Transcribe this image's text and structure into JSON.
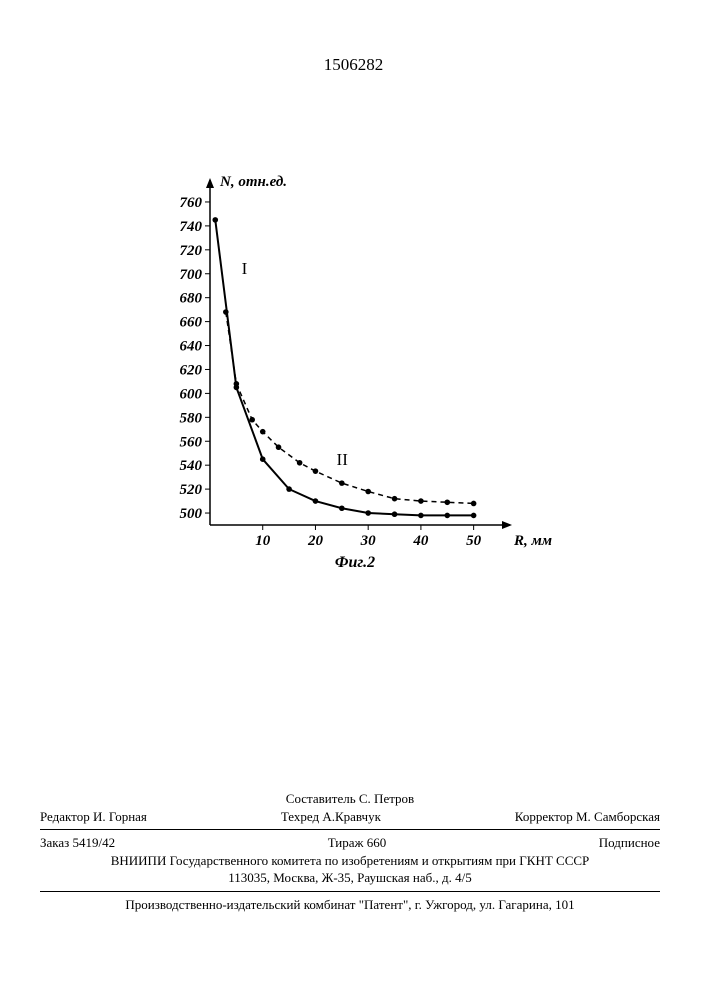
{
  "patent_number": "1506282",
  "chart": {
    "type": "line",
    "y_axis_label": "N, отн.ед.",
    "x_axis_label": "R, мм",
    "figure_caption": "Фиг.2",
    "y_ticks": [
      500,
      520,
      540,
      560,
      580,
      600,
      620,
      640,
      660,
      680,
      700,
      720,
      740,
      760
    ],
    "x_ticks": [
      10,
      20,
      30,
      40,
      50
    ],
    "ylim": [
      490,
      770
    ],
    "xlim": [
      0,
      55
    ],
    "series": [
      {
        "name": "I",
        "label": "I",
        "label_pos": {
          "x": 6,
          "y": 700
        },
        "style": "solid",
        "line_width": 2,
        "color": "#000000",
        "points": [
          {
            "x": 1,
            "y": 745
          },
          {
            "x": 5,
            "y": 605
          },
          {
            "x": 10,
            "y": 545
          },
          {
            "x": 15,
            "y": 520
          },
          {
            "x": 20,
            "y": 510
          },
          {
            "x": 25,
            "y": 504
          },
          {
            "x": 30,
            "y": 500
          },
          {
            "x": 35,
            "y": 499
          },
          {
            "x": 40,
            "y": 498
          },
          {
            "x": 45,
            "y": 498
          },
          {
            "x": 50,
            "y": 498
          }
        ]
      },
      {
        "name": "II",
        "label": "II",
        "label_pos": {
          "x": 24,
          "y": 540
        },
        "style": "dashed",
        "line_width": 1.5,
        "color": "#000000",
        "points": [
          {
            "x": 3,
            "y": 668
          },
          {
            "x": 5,
            "y": 608
          },
          {
            "x": 8,
            "y": 578
          },
          {
            "x": 10,
            "y": 568
          },
          {
            "x": 13,
            "y": 555
          },
          {
            "x": 17,
            "y": 542
          },
          {
            "x": 20,
            "y": 535
          },
          {
            "x": 25,
            "y": 525
          },
          {
            "x": 30,
            "y": 518
          },
          {
            "x": 35,
            "y": 512
          },
          {
            "x": 40,
            "y": 510
          },
          {
            "x": 45,
            "y": 509
          },
          {
            "x": 50,
            "y": 508
          }
        ]
      }
    ],
    "marker_radius": 2.8,
    "background": "#ffffff",
    "tick_fontsize": 15,
    "label_fontsize": 15
  },
  "footer": {
    "composer": "Составитель  С. Петров",
    "editor_label": "Редактор И. Горная",
    "techred": "Техред А.Кравчук",
    "corrector": "Корректор М. Самборская",
    "order": "Заказ 5419/42",
    "tirazh": "Тираж 660",
    "podpisnoe": "Подписное",
    "org1": "ВНИИПИ Государственного комитета по изобретениям и открытиям при ГКНТ СССР",
    "org1_addr": "113035, Москва, Ж-35, Раушская наб., д. 4/5",
    "org2": "Производственно-издательский комбинат \"Патент\", г. Ужгород, ул. Гагарина, 101"
  }
}
